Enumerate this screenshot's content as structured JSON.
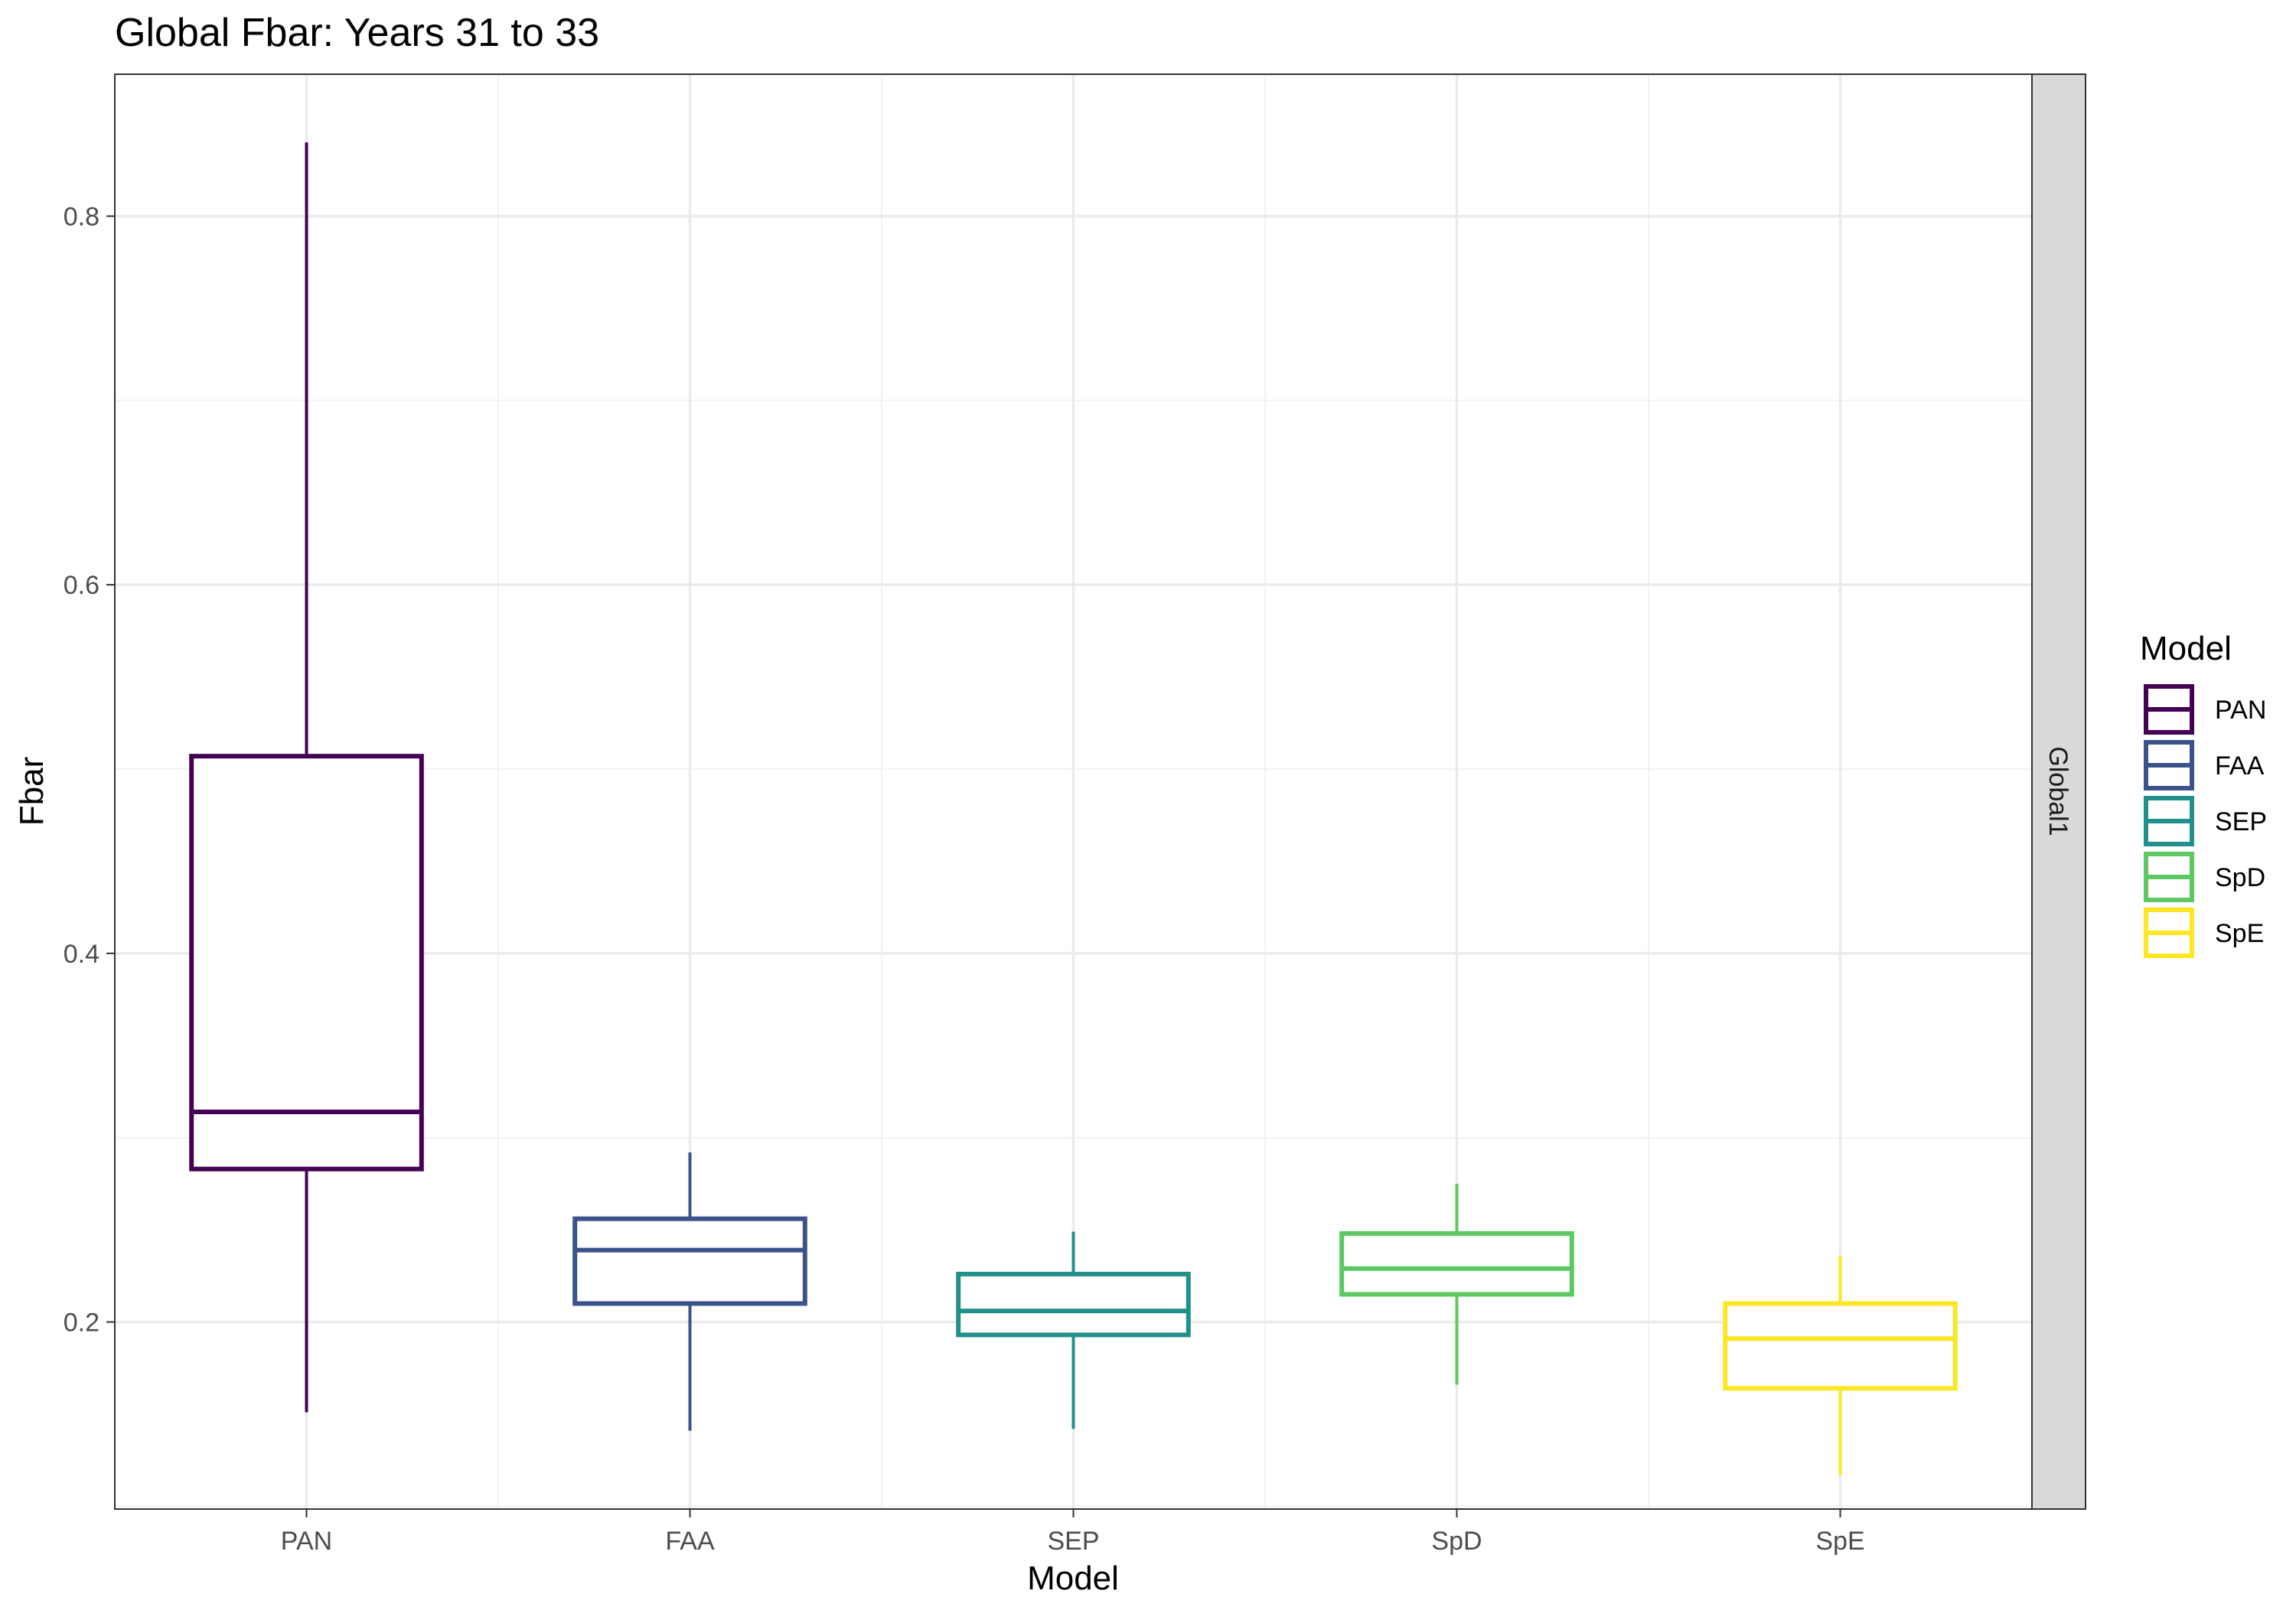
{
  "chart_data": {
    "type": "box",
    "title": "Global Fbar: Years 31 to 33",
    "xlabel": "Model",
    "ylabel": "Fbar",
    "ylim": [
      0.0985,
      0.877
    ],
    "yticks": [
      0.2,
      0.4,
      0.6,
      0.8
    ],
    "yticks_labels": [
      "0.2",
      "0.4",
      "0.6",
      "0.8"
    ],
    "facet_label": "Global1",
    "grid": true,
    "legend": {
      "title": "Model",
      "position": "right"
    },
    "categories": [
      "PAN",
      "FAA",
      "SEP",
      "SpD",
      "SpE"
    ],
    "series": [
      {
        "name": "PAN",
        "color": "#440154",
        "whisker_low": 0.151,
        "q1": 0.283,
        "median": 0.314,
        "q3": 0.507,
        "whisker_high": 0.84
      },
      {
        "name": "FAA",
        "color": "#3B528B",
        "whisker_low": 0.141,
        "q1": 0.21,
        "median": 0.239,
        "q3": 0.256,
        "whisker_high": 0.292
      },
      {
        "name": "SEP",
        "color": "#21908C",
        "whisker_low": 0.142,
        "q1": 0.193,
        "median": 0.206,
        "q3": 0.226,
        "whisker_high": 0.249
      },
      {
        "name": "SpD",
        "color": "#5DC863",
        "whisker_low": 0.166,
        "q1": 0.215,
        "median": 0.229,
        "q3": 0.248,
        "whisker_high": 0.275
      },
      {
        "name": "SpE",
        "color": "#FDE725",
        "whisker_low": 0.117,
        "q1": 0.164,
        "median": 0.191,
        "q3": 0.21,
        "whisker_high": 0.236
      }
    ]
  }
}
